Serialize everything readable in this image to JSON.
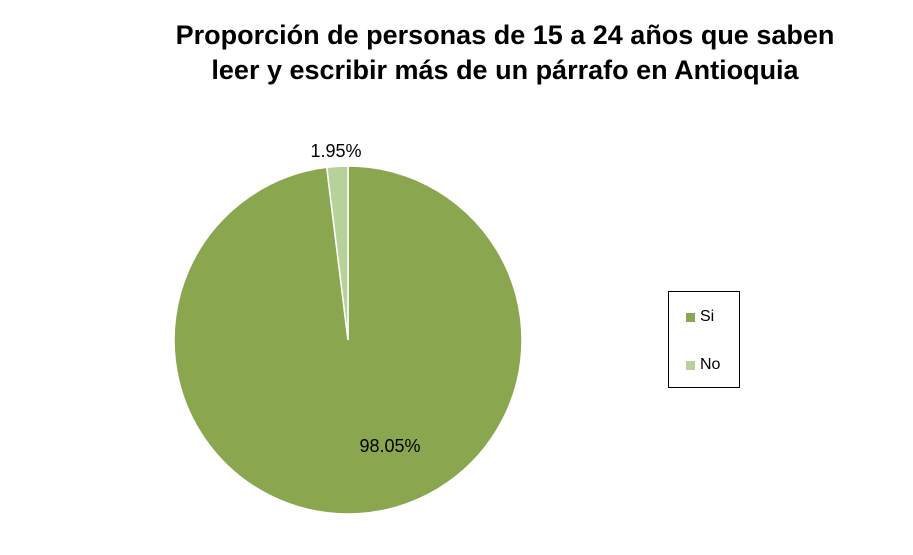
{
  "chart_data": {
    "type": "pie",
    "title_lines": [
      "Proporción de personas de 15 a 24 años que saben",
      "leer y escribir más de un párrafo en Antioquia"
    ],
    "slices": [
      {
        "name": "Si",
        "value": 98.05,
        "label": "98.05%",
        "color": "#8aa64e"
      },
      {
        "name": "No",
        "value": 1.95,
        "label": "1.95%",
        "color": "#b7d19a"
      }
    ],
    "legend_position": "right"
  }
}
